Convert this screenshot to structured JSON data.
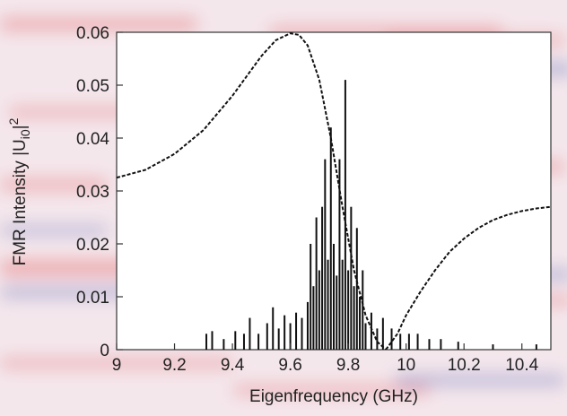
{
  "chart_data": {
    "type": "bar",
    "xlabel": "Eigenfrequency (GHz)",
    "ylabel": "FMR Intensity |U",
    "ylabel_sub": "i0",
    "ylabel_tail": "|",
    "ylabel_sup": "2",
    "xlim": [
      9.0,
      10.5
    ],
    "ylim": [
      0,
      0.06
    ],
    "x_ticks": [
      "9",
      "9.2",
      "9.4",
      "9.6",
      "9.8",
      "10",
      "10.2",
      "10.4"
    ],
    "y_ticks": [
      "0",
      "0.01",
      "0.02",
      "0.03",
      "0.04",
      "0.05",
      "0.06"
    ],
    "grid": false,
    "background": "red-blue wave-pattern image behind plot",
    "colors": {
      "bars": "#111111",
      "curve": "#111111",
      "bg_red": "#e89a9c",
      "bg_blue": "#a6a6cf",
      "plot_bg": "#ffffff"
    },
    "series": [
      {
        "type": "bar",
        "x": [
          9.31,
          9.33,
          9.37,
          9.41,
          9.44,
          9.46,
          9.49,
          9.52,
          9.54,
          9.56,
          9.58,
          9.6,
          9.62,
          9.64,
          9.66,
          9.67,
          9.68,
          9.69,
          9.7,
          9.71,
          9.72,
          9.73,
          9.74,
          9.75,
          9.76,
          9.77,
          9.78,
          9.79,
          9.8,
          9.81,
          9.82,
          9.83,
          9.84,
          9.85,
          9.86,
          9.88,
          9.9,
          9.92,
          9.95,
          9.98,
          10.01,
          10.04,
          10.08,
          10.12,
          10.18,
          10.3,
          10.45
        ],
        "values": [
          0.003,
          0.0035,
          0.002,
          0.0035,
          0.003,
          0.006,
          0.003,
          0.005,
          0.008,
          0.004,
          0.0065,
          0.005,
          0.007,
          0.006,
          0.009,
          0.02,
          0.012,
          0.025,
          0.015,
          0.027,
          0.036,
          0.017,
          0.042,
          0.02,
          0.014,
          0.036,
          0.017,
          0.051,
          0.015,
          0.027,
          0.012,
          0.023,
          0.01,
          0.015,
          0.005,
          0.007,
          0.004,
          0.006,
          0.004,
          0.003,
          0.003,
          0.003,
          0.002,
          0.002,
          0.0015,
          0.001,
          0.001
        ]
      },
      {
        "type": "line",
        "style": "dashed",
        "segments": [
          {
            "x": [
              9.0,
              9.1,
              9.2,
              9.3,
              9.4,
              9.5,
              9.55,
              9.6,
              9.63,
              9.66,
              9.7,
              9.74,
              9.78,
              9.82,
              9.86,
              9.9,
              9.93
            ],
            "y": [
              0.0325,
              0.034,
              0.037,
              0.0415,
              0.048,
              0.0555,
              0.0585,
              0.0598,
              0.0595,
              0.0575,
              0.051,
              0.04,
              0.027,
              0.015,
              0.0065,
              0.0015,
              0.0
            ]
          },
          {
            "x": [
              9.93,
              9.97,
              10.0,
              10.05,
              10.1,
              10.15,
              10.2,
              10.25,
              10.3,
              10.35,
              10.4,
              10.45,
              10.5
            ],
            "y": [
              0.0,
              0.003,
              0.0065,
              0.011,
              0.015,
              0.0185,
              0.021,
              0.023,
              0.0245,
              0.0255,
              0.0262,
              0.0267,
              0.027
            ]
          }
        ]
      }
    ]
  }
}
